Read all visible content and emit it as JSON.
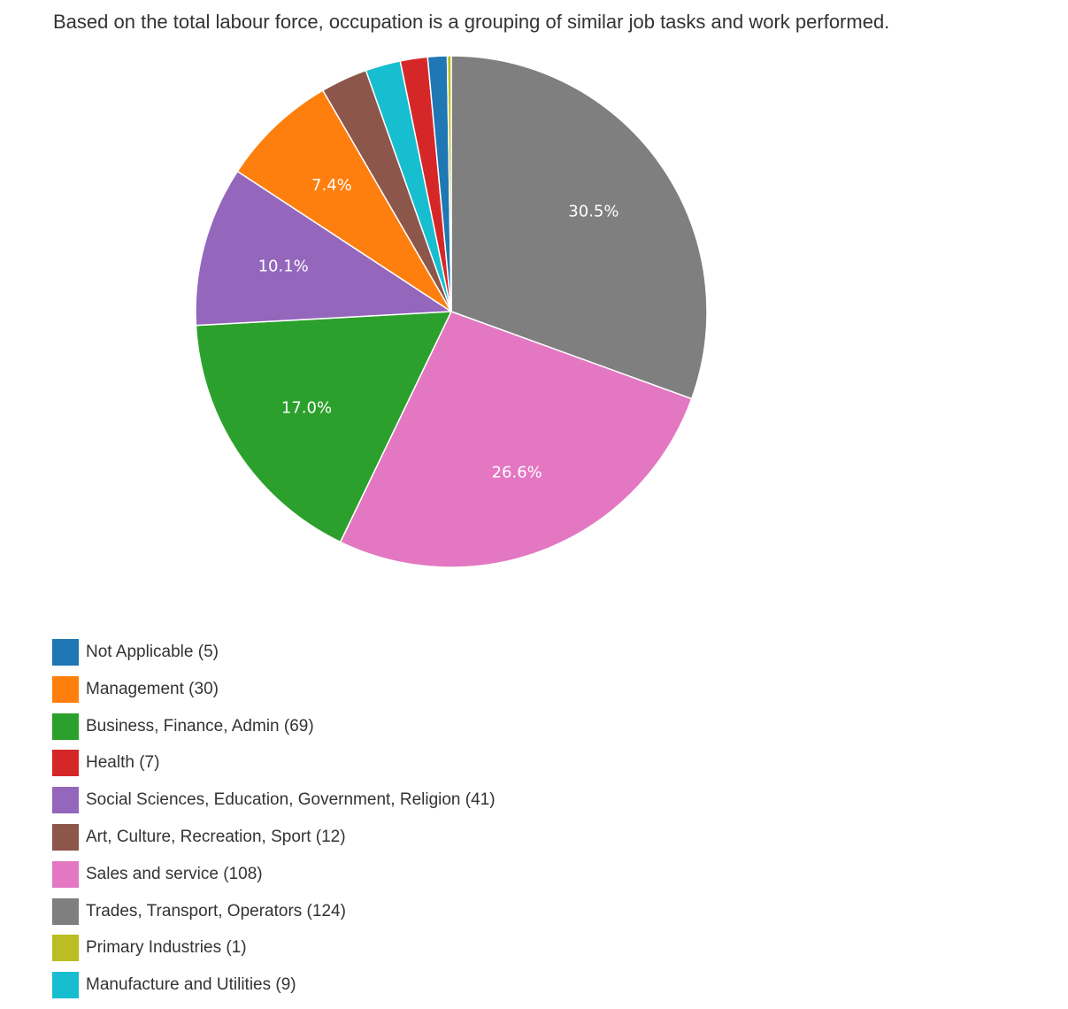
{
  "description": "Based on the total labour force, occupation is a grouping of similar job tasks and work performed.",
  "chart_data": {
    "type": "pie",
    "title": "",
    "slices": [
      {
        "category": "Trades, Transport, Operators",
        "legend_label": "Trades, Transport, Operators (124)",
        "value": 124,
        "color": "#7f7f7f",
        "pct_label": "30.5%"
      },
      {
        "category": "Sales and service",
        "legend_label": "Sales and service (108)",
        "value": 108,
        "color": "#e377c2",
        "pct_label": "26.6%"
      },
      {
        "category": "Business, Finance, Admin",
        "legend_label": "Business, Finance, Admin (69)",
        "value": 69,
        "color": "#2ca02c",
        "pct_label": "17.0%"
      },
      {
        "category": "Social Sciences, Education, Government, Religion",
        "legend_label": "Social Sciences, Education, Government, Religion (41)",
        "value": 41,
        "color": "#9467bd",
        "pct_label": "10.1%"
      },
      {
        "category": "Management",
        "legend_label": "Management (30)",
        "value": 30,
        "color": "#ff7f0e",
        "pct_label": "7.4%"
      },
      {
        "category": "Art, Culture, Recreation, Sport",
        "legend_label": "Art, Culture, Recreation, Sport (12)",
        "value": 12,
        "color": "#8c564b",
        "pct_label": ""
      },
      {
        "category": "Manufacture and Utilities",
        "legend_label": "Manufacture and Utilities (9)",
        "value": 9,
        "color": "#17becf",
        "pct_label": ""
      },
      {
        "category": "Health",
        "legend_label": "Health (7)",
        "value": 7,
        "color": "#d62728",
        "pct_label": ""
      },
      {
        "category": "Not Applicable",
        "legend_label": "Not Applicable (5)",
        "value": 5,
        "color": "#1f77b4",
        "pct_label": ""
      },
      {
        "category": "Primary Industries",
        "legend_label": "Primary Industries (1)",
        "value": 1,
        "color": "#bcbd22",
        "pct_label": ""
      }
    ],
    "legend": {
      "placement": "bottom-left",
      "order": [
        "Not Applicable",
        "Management",
        "Business, Finance, Admin",
        "Health",
        "Social Sciences, Education, Government, Religion",
        "Art, Culture, Recreation, Sport",
        "Sales and service",
        "Trades, Transport, Operators",
        "Primary Industries",
        "Manufacture and Utilities"
      ]
    }
  }
}
